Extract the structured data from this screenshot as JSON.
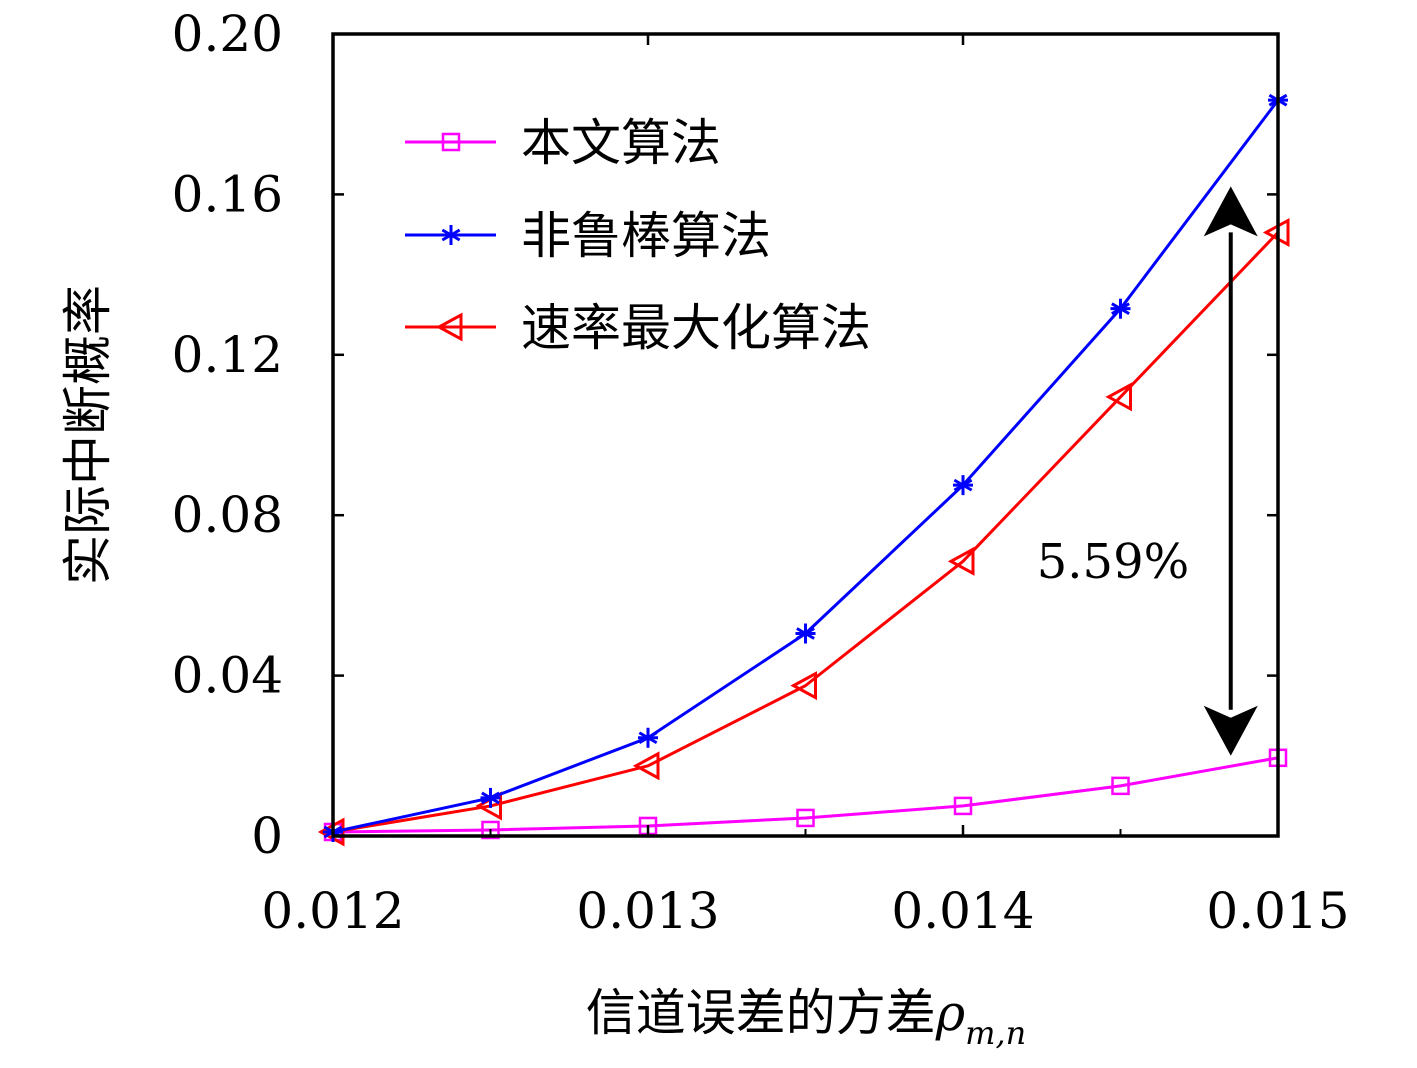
{
  "chart_data": {
    "type": "line",
    "title": "",
    "xlabel": "信道误差的方差",
    "xlabel_symbol": "ρ",
    "xlabel_subscript": "m,n",
    "ylabel": "实际中断概率",
    "xlim": [
      0.012,
      0.015
    ],
    "ylim": [
      0,
      0.2
    ],
    "x_ticks": [
      0.012,
      0.013,
      0.014,
      0.015
    ],
    "x_tick_labels": [
      "0.012",
      "0.013",
      "0.014",
      "0.015"
    ],
    "y_ticks": [
      0,
      0.04,
      0.08,
      0.12,
      0.16,
      0.2
    ],
    "y_tick_labels": [
      "0",
      "0.04",
      "0.08",
      "0.12",
      "0.16",
      "0.20"
    ],
    "grid": false,
    "legend_position": "top-left",
    "x": [
      0.012,
      0.0125,
      0.013,
      0.0135,
      0.014,
      0.0145,
      0.015
    ],
    "series": [
      {
        "name": "本文算法",
        "color": "#ff00ff",
        "marker": "square",
        "values": [
          0.001,
          0.0015,
          0.0025,
          0.0045,
          0.0075,
          0.0125,
          0.0195
        ]
      },
      {
        "name": "非鲁棒算法",
        "color": "#0000ff",
        "marker": "asterisk",
        "values": [
          0.001,
          0.0095,
          0.0245,
          0.0505,
          0.0875,
          0.1315,
          0.1835
        ]
      },
      {
        "name": "速率最大化算法",
        "color": "#ff0000",
        "marker": "triangle-left",
        "values": [
          0.001,
          0.0075,
          0.0175,
          0.0375,
          0.0685,
          0.1095,
          0.1505
        ]
      }
    ],
    "annotation": {
      "text": "5.59%",
      "x": 0.01485,
      "y_from": 0.162,
      "y_to": 0.02
    }
  }
}
